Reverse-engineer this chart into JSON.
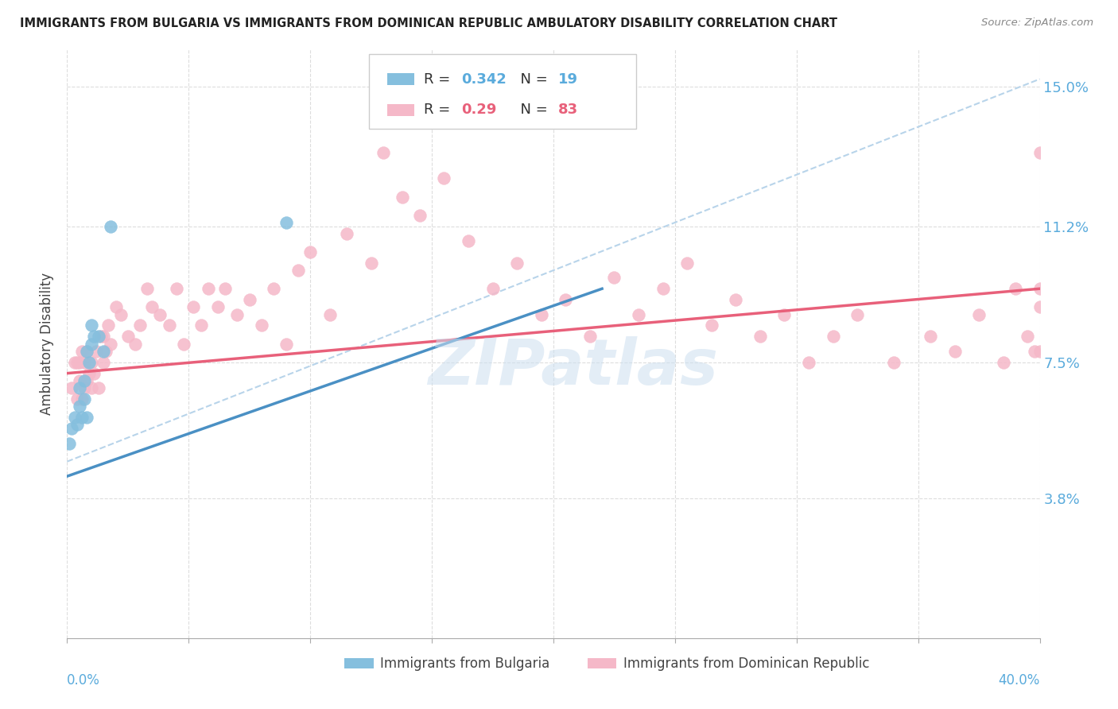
{
  "title": "IMMIGRANTS FROM BULGARIA VS IMMIGRANTS FROM DOMINICAN REPUBLIC AMBULATORY DISABILITY CORRELATION CHART",
  "source": "Source: ZipAtlas.com",
  "ylabel": "Ambulatory Disability",
  "y_tick_labels": [
    "3.8%",
    "7.5%",
    "11.2%",
    "15.0%"
  ],
  "y_tick_values": [
    0.038,
    0.075,
    0.112,
    0.15
  ],
  "x_ticks": [
    0.0,
    0.05,
    0.1,
    0.15,
    0.2,
    0.25,
    0.3,
    0.35,
    0.4
  ],
  "xlim": [
    0.0,
    0.4
  ],
  "ylim": [
    0.0,
    0.16
  ],
  "r_bulgaria": 0.342,
  "n_bulgaria": 19,
  "r_dominican": 0.29,
  "n_dominican": 83,
  "color_bulgaria": "#85bfde",
  "color_dominican": "#f5b8c8",
  "color_line_bulgaria": "#4a90c4",
  "color_line_dominican": "#e8607a",
  "color_dashed": "#b8d4ea",
  "watermark": "ZIPatlas",
  "legend_label_bulgaria": "Immigrants from Bulgaria",
  "legend_label_dominican": "Immigrants from Dominican Republic",
  "bul_line_x0": 0.0,
  "bul_line_y0": 0.044,
  "bul_line_x1": 0.22,
  "bul_line_y1": 0.095,
  "dom_line_x0": 0.0,
  "dom_line_y0": 0.072,
  "dom_line_x1": 0.4,
  "dom_line_y1": 0.095,
  "dash_line_x0": 0.0,
  "dash_line_y0": 0.048,
  "dash_line_x1": 0.4,
  "dash_line_y1": 0.152,
  "bul_x": [
    0.001,
    0.002,
    0.003,
    0.004,
    0.005,
    0.005,
    0.006,
    0.007,
    0.007,
    0.008,
    0.008,
    0.009,
    0.01,
    0.01,
    0.011,
    0.013,
    0.015,
    0.018,
    0.09
  ],
  "bul_y": [
    0.053,
    0.057,
    0.06,
    0.058,
    0.063,
    0.068,
    0.06,
    0.065,
    0.07,
    0.06,
    0.078,
    0.075,
    0.08,
    0.085,
    0.082,
    0.082,
    0.078,
    0.112,
    0.113
  ],
  "dom_x": [
    0.002,
    0.003,
    0.004,
    0.004,
    0.005,
    0.005,
    0.006,
    0.006,
    0.007,
    0.007,
    0.008,
    0.008,
    0.009,
    0.01,
    0.01,
    0.011,
    0.012,
    0.013,
    0.014,
    0.015,
    0.015,
    0.016,
    0.017,
    0.018,
    0.02,
    0.022,
    0.025,
    0.028,
    0.03,
    0.033,
    0.035,
    0.038,
    0.042,
    0.045,
    0.048,
    0.052,
    0.055,
    0.058,
    0.062,
    0.065,
    0.07,
    0.075,
    0.08,
    0.085,
    0.09,
    0.095,
    0.1,
    0.108,
    0.115,
    0.125,
    0.13,
    0.138,
    0.145,
    0.155,
    0.165,
    0.175,
    0.185,
    0.195,
    0.205,
    0.215,
    0.225,
    0.235,
    0.245,
    0.255,
    0.265,
    0.275,
    0.285,
    0.295,
    0.305,
    0.315,
    0.325,
    0.34,
    0.355,
    0.365,
    0.375,
    0.385,
    0.39,
    0.395,
    0.398,
    0.4,
    0.4,
    0.4,
    0.4
  ],
  "dom_y": [
    0.068,
    0.075,
    0.065,
    0.075,
    0.07,
    0.075,
    0.065,
    0.078,
    0.068,
    0.075,
    0.07,
    0.078,
    0.072,
    0.068,
    0.075,
    0.072,
    0.078,
    0.068,
    0.082,
    0.075,
    0.082,
    0.078,
    0.085,
    0.08,
    0.09,
    0.088,
    0.082,
    0.08,
    0.085,
    0.095,
    0.09,
    0.088,
    0.085,
    0.095,
    0.08,
    0.09,
    0.085,
    0.095,
    0.09,
    0.095,
    0.088,
    0.092,
    0.085,
    0.095,
    0.08,
    0.1,
    0.105,
    0.088,
    0.11,
    0.102,
    0.132,
    0.12,
    0.115,
    0.125,
    0.108,
    0.095,
    0.102,
    0.088,
    0.092,
    0.082,
    0.098,
    0.088,
    0.095,
    0.102,
    0.085,
    0.092,
    0.082,
    0.088,
    0.075,
    0.082,
    0.088,
    0.075,
    0.082,
    0.078,
    0.088,
    0.075,
    0.095,
    0.082,
    0.078,
    0.078,
    0.09,
    0.095,
    0.132
  ]
}
